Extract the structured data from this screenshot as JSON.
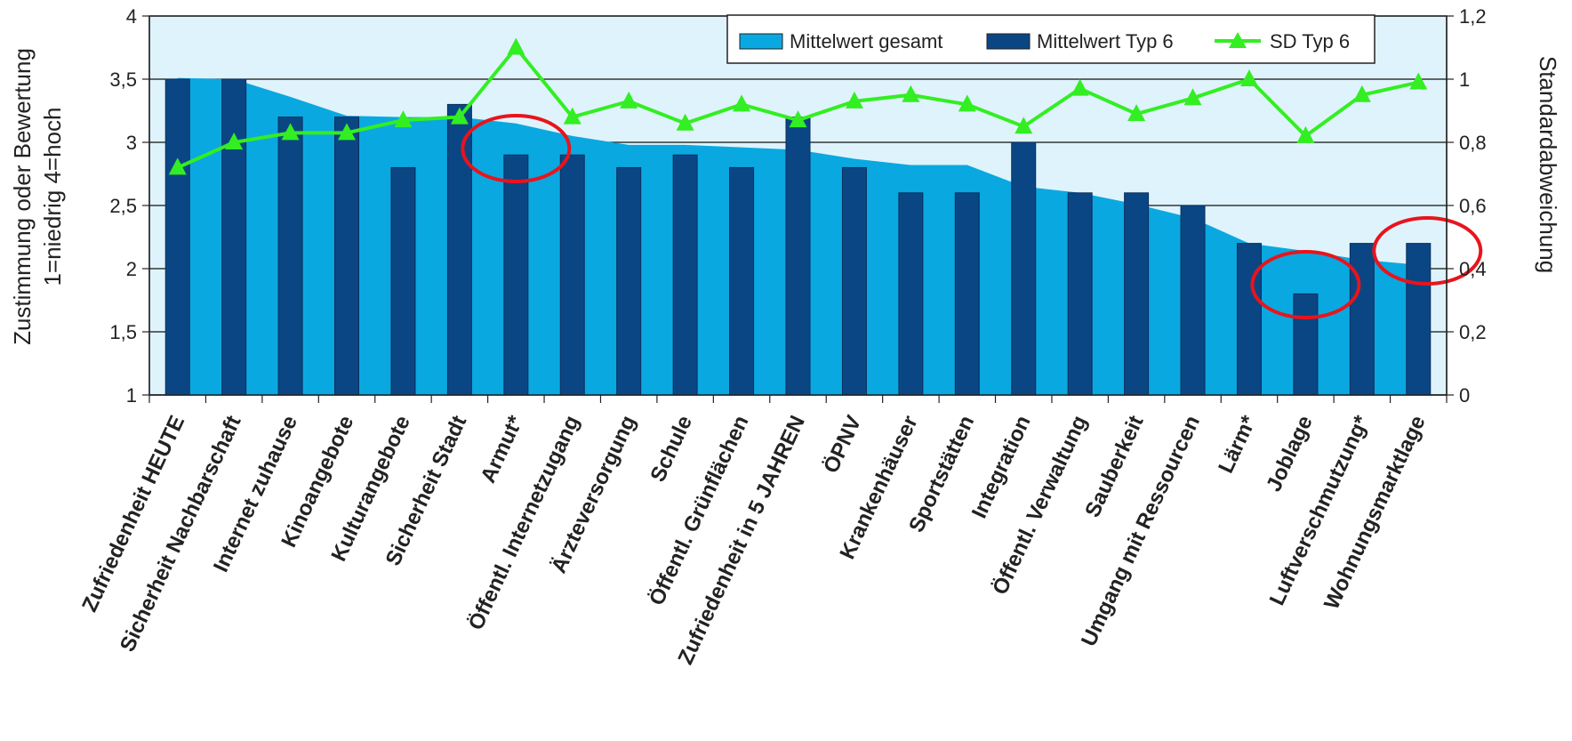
{
  "chart_data": {
    "type": "bar",
    "categories": [
      "Zufriedenheit HEUTE",
      "Sicherheit Nachbarschaft",
      "Internet zuhause",
      "Kinoangebote",
      "Kulturangebote",
      "Sicherheit Stadt",
      "Armut*",
      "Öffentl. Internetzugang",
      "Ärzteversorgung",
      "Schule",
      "Öffentl. Grünflächen",
      "Zufriedenheit in 5 JAHREN",
      "ÖPNV",
      "Krankenhäuser",
      "Sportstätten",
      "Integration",
      "Öffentl. Verwaltung",
      "Sauberkeit",
      "Umgang mit Ressourcen",
      "Lärm*",
      "Joblage",
      "Luftverschmutzung*",
      "Wohnungsmarktlage"
    ],
    "series": [
      {
        "name": "Mittelwert gesamt",
        "type": "area",
        "color": "#0aa8e0",
        "axis": "left",
        "values": [
          3.51,
          3.5,
          3.36,
          3.21,
          3.2,
          3.2,
          3.15,
          3.05,
          2.98,
          2.98,
          2.96,
          2.94,
          2.87,
          2.82,
          2.82,
          2.65,
          2.6,
          2.51,
          2.4,
          2.2,
          2.14,
          2.07,
          2.03
        ]
      },
      {
        "name": "Mittelwert Typ 6",
        "type": "bar",
        "color": "#0b4684",
        "axis": "left",
        "values": [
          3.5,
          3.5,
          3.2,
          3.2,
          2.8,
          3.3,
          2.9,
          2.9,
          2.8,
          2.9,
          2.8,
          3.2,
          2.8,
          2.6,
          2.6,
          3.0,
          2.6,
          2.6,
          2.5,
          2.2,
          1.8,
          2.2,
          2.2
        ]
      },
      {
        "name": "SD Typ 6",
        "type": "line",
        "color": "#33ee22",
        "axis": "right",
        "values": [
          0.72,
          0.8,
          0.83,
          0.83,
          0.87,
          0.88,
          1.1,
          0.88,
          0.93,
          0.86,
          0.92,
          0.87,
          0.93,
          0.95,
          0.92,
          0.85,
          0.97,
          0.89,
          0.94,
          1.0,
          0.82,
          0.95,
          0.99
        ]
      }
    ],
    "ylabel_lines": [
      "Zustimmung oder Bewertung",
      "1=niedrig 4=hoch"
    ],
    "ylim": [
      1,
      4
    ],
    "yticks": [
      "1",
      "1,5",
      "2",
      "2,5",
      "3",
      "3,5",
      "4"
    ],
    "y2label": "Standardabweichung",
    "y2lim": [
      0,
      1.2
    ],
    "y2ticks": [
      "0",
      "0,2",
      "0,4",
      "0,6",
      "0,8",
      "1",
      "1,2"
    ],
    "grid": true,
    "legend": "top-right",
    "plot_background": "#dff3fc",
    "highlight_color": "#e8141c",
    "highlighted_categories": [
      "Armut*",
      "Joblage",
      "Wohnungsmarktlage"
    ]
  }
}
